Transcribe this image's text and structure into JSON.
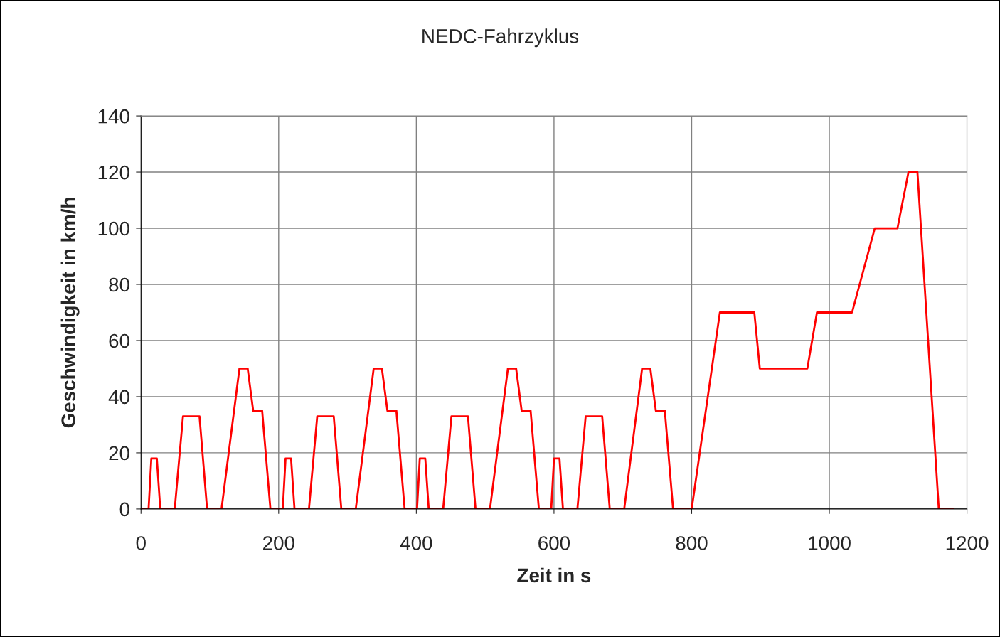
{
  "chart_data": {
    "type": "line",
    "title": "NEDC-Fahrzyklus",
    "xlabel": "Zeit in s",
    "ylabel": "Geschwindigkeit in km/h",
    "series": [
      {
        "color": "#ff0000",
        "x": [
          0,
          11,
          15,
          23,
          28,
          49,
          61,
          85,
          96,
          117,
          143,
          155,
          163,
          176,
          188,
          206,
          210,
          218,
          223,
          244,
          256,
          280,
          291,
          312,
          338,
          350,
          358,
          371,
          383,
          401,
          405,
          413,
          418,
          439,
          451,
          475,
          486,
          507,
          533,
          545,
          553,
          566,
          578,
          596,
          600,
          608,
          613,
          634,
          646,
          670,
          681,
          702,
          728,
          740,
          748,
          761,
          773,
          800,
          841,
          891,
          899,
          968,
          982,
          1033,
          1066,
          1099,
          1115,
          1128,
          1159,
          1180
        ],
        "values": [
          0,
          0,
          18,
          18,
          0,
          0,
          33,
          33,
          0,
          0,
          50,
          50,
          35,
          35,
          0,
          0,
          18,
          18,
          0,
          0,
          33,
          33,
          0,
          0,
          50,
          50,
          35,
          35,
          0,
          0,
          18,
          18,
          0,
          0,
          33,
          33,
          0,
          0,
          50,
          50,
          35,
          35,
          0,
          0,
          18,
          18,
          0,
          0,
          33,
          33,
          0,
          0,
          50,
          50,
          35,
          35,
          0,
          0,
          70,
          70,
          50,
          50,
          70,
          70,
          100,
          100,
          120,
          120,
          0,
          0
        ]
      }
    ],
    "xlim": [
      0,
      1200
    ],
    "xticks": [
      0,
      200,
      400,
      600,
      800,
      1000,
      1200
    ],
    "ylim": [
      0,
      140
    ],
    "yticks": [
      0,
      20,
      40,
      60,
      80,
      100,
      120,
      140
    ],
    "grid": true,
    "marker": "none",
    "line_style": "solid",
    "legend": false
  }
}
